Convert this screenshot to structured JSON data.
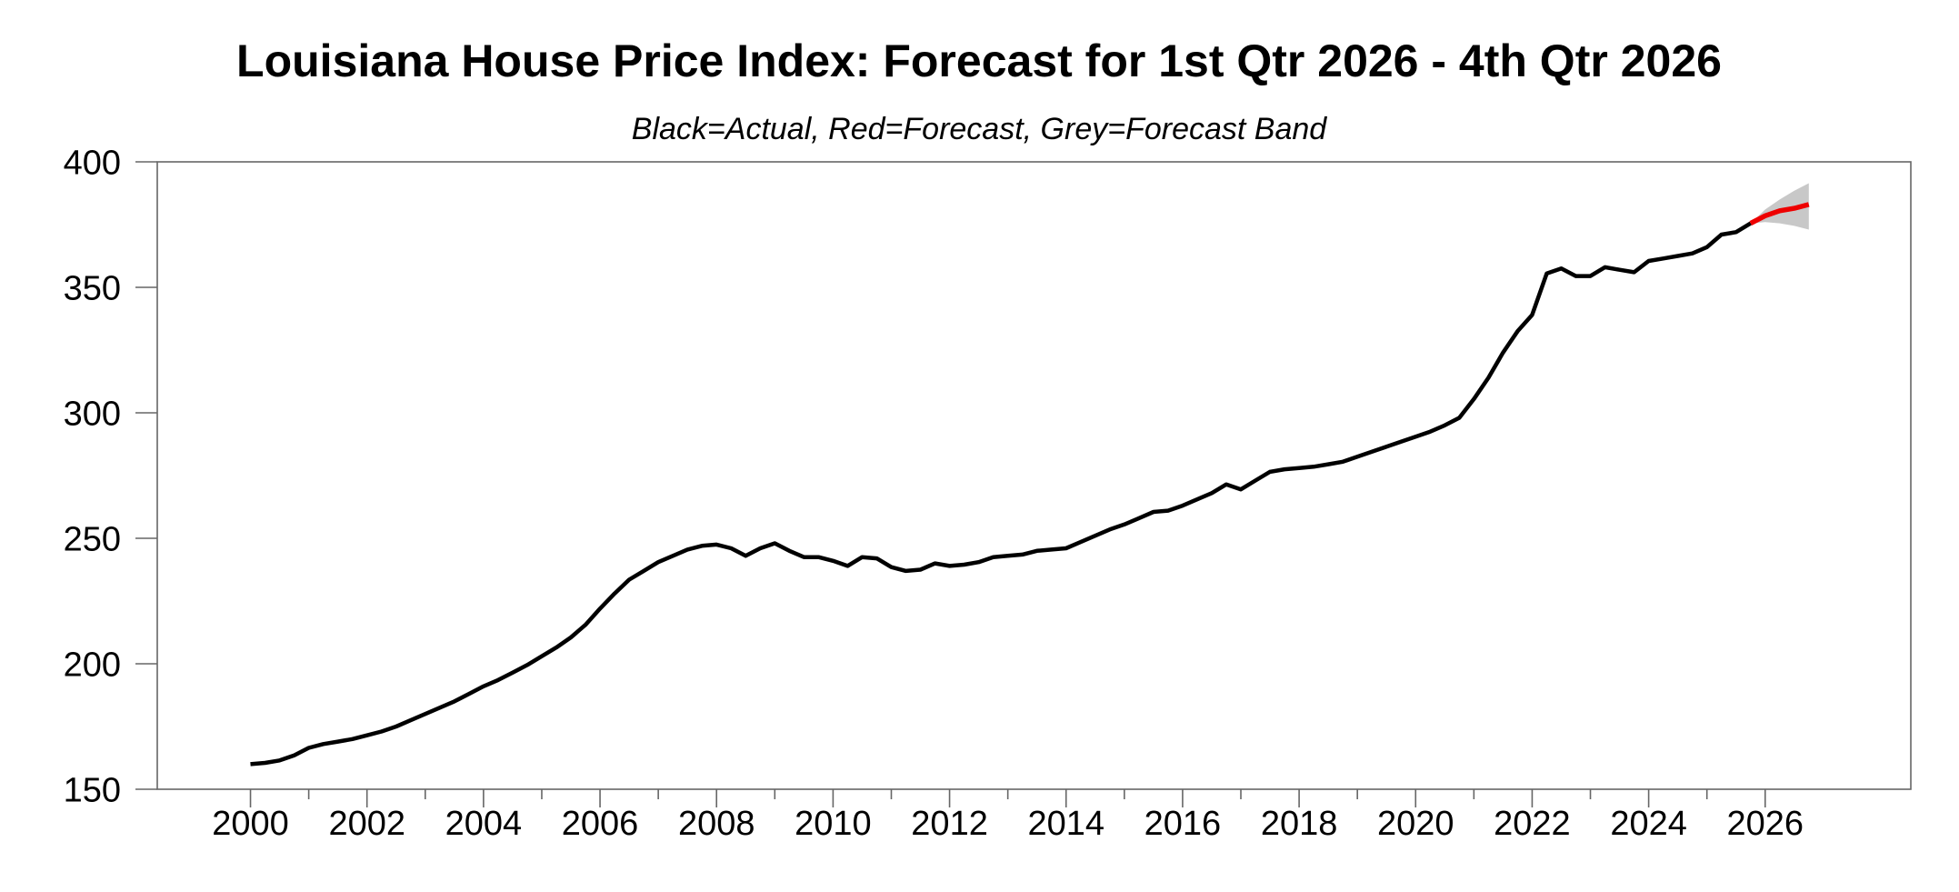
{
  "chart_data": {
    "type": "line",
    "title": "Louisiana House Price Index: Forecast for 1st Qtr 2026 - 4th Qtr 2026",
    "subtitle": "Black=Actual, Red=Forecast, Grey=Forecast Band",
    "xlabel": "",
    "ylabel": "",
    "xlim": [
      1998.4,
      2028.5
    ],
    "ylim": [
      150,
      400
    ],
    "y_ticks": [
      150,
      200,
      250,
      300,
      350,
      400
    ],
    "x_major_ticks": [
      2000,
      2002,
      2004,
      2006,
      2008,
      2010,
      2012,
      2014,
      2016,
      2018,
      2020,
      2022,
      2024,
      2026
    ],
    "x_minor_ticks": [
      2001,
      2003,
      2005,
      2007,
      2009,
      2011,
      2013,
      2015,
      2017,
      2019,
      2021,
      2023,
      2025
    ],
    "grid": false,
    "legend": "none (color coding described in subtitle)",
    "frequency": "quarterly",
    "colors": {
      "actual": "#000000",
      "forecast": "#ee0000",
      "band": "#c8c8c8",
      "frame": "#666666",
      "text": "#000000",
      "background": "#ffffff"
    },
    "series": [
      {
        "name": "Actual",
        "kind": "line",
        "color_key": "actual",
        "start": 2000.0,
        "step": 0.25,
        "values": [
          160,
          160.5,
          161.5,
          163.5,
          166.5,
          168,
          169,
          170,
          171.5,
          173,
          175,
          177.5,
          180,
          182.5,
          185,
          188,
          191,
          193.5,
          196.5,
          199.5,
          203,
          206.5,
          210.5,
          215.5,
          222,
          228,
          233.5,
          237,
          240.5,
          243,
          245.5,
          247,
          247.5,
          246,
          243,
          246,
          248,
          245,
          242.5,
          242.5,
          241,
          239,
          242.5,
          242,
          238.5,
          237,
          237.5,
          240,
          239,
          239.5,
          240.5,
          242.5,
          243,
          243.5,
          245,
          245.5,
          246,
          248.5,
          251,
          253.5,
          255.5,
          258,
          260.5,
          261,
          263,
          265.5,
          268,
          271.5,
          269.5,
          273,
          276.5,
          277.5,
          278,
          278.5,
          279.5,
          280.5,
          282.5,
          284.5,
          286.5,
          288.5,
          290.5,
          292.5,
          295,
          298,
          305.5,
          314,
          324,
          332.5,
          339,
          355.5,
          357.5,
          354.5,
          354.5,
          358,
          357,
          356,
          360.5,
          361.5,
          362.5,
          363.5,
          366,
          371,
          372,
          375.5
        ]
      },
      {
        "name": "Forecast",
        "kind": "line",
        "color_key": "forecast",
        "start": 2025.75,
        "step": 0.25,
        "values": [
          375.5,
          378.5,
          380.5,
          381.5,
          383
        ]
      },
      {
        "name": "Forecast Band",
        "kind": "band",
        "color_key": "band",
        "start": 2025.75,
        "step": 0.25,
        "upper": [
          375.5,
          381,
          385,
          388.5,
          391.5
        ],
        "lower": [
          375.5,
          376,
          375.5,
          374.5,
          373
        ]
      }
    ]
  }
}
